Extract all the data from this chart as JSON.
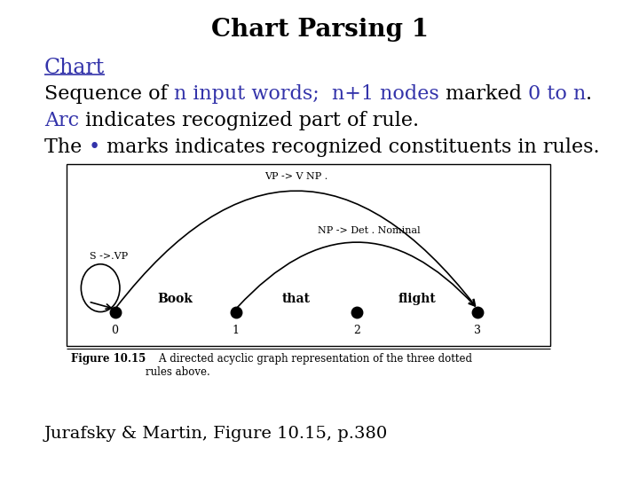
{
  "title": "Chart Parsing 1",
  "title_fontsize": 20,
  "title_fontweight": "bold",
  "bg_color": "#ffffff",
  "text_color_black": "#000000",
  "text_color_blue": "#3333aa",
  "line1_parts": [
    {
      "text": "Chart",
      "color": "#3333aa",
      "underline": true,
      "size": 17
    }
  ],
  "line2_parts": [
    {
      "text": "Sequence of ",
      "color": "#000000"
    },
    {
      "text": "n input words;  n+1 nodes",
      "color": "#3333aa"
    },
    {
      "text": " marked ",
      "color": "#000000"
    },
    {
      "text": "0 to n",
      "color": "#3333aa"
    },
    {
      "text": ".",
      "color": "#000000"
    }
  ],
  "line3_parts": [
    {
      "text": "Arc",
      "color": "#3333aa"
    },
    {
      "text": " indicates recognized part of rule.",
      "color": "#000000"
    }
  ],
  "line4_parts": [
    {
      "text": "The ",
      "color": "#000000"
    },
    {
      "text": "•",
      "color": "#3333aa"
    },
    {
      "text": " marks indicates recognized constituents in rules.",
      "color": "#000000"
    }
  ],
  "figure_caption_bold": "Figure 10.15",
  "figure_caption_normal": "    A directed acyclic graph representation of the three dotted\nrules above.",
  "footer": "Jurafsky & Martin, Figure 10.15, p.380",
  "node_numbers": [
    "0",
    "1",
    "2",
    "3"
  ],
  "node_labels": [
    "Book",
    "that",
    "flight"
  ],
  "arc_color": "#000000",
  "node_color": "#000000"
}
